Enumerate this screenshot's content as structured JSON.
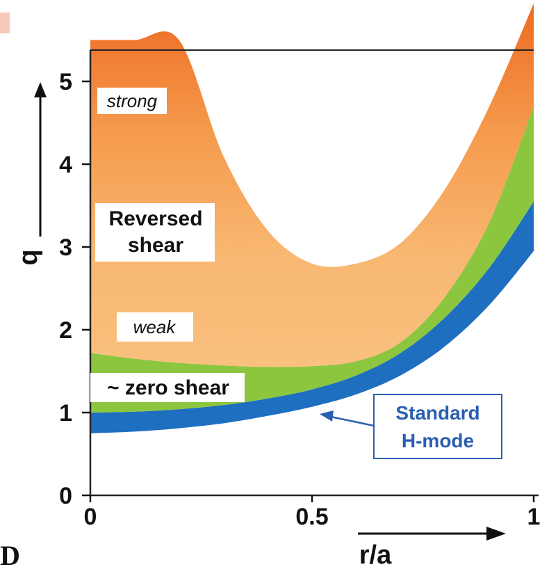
{
  "chart_data": {
    "type": "area",
    "xlabel": "r/a",
    "ylabel": "q",
    "xlim": [
      0,
      1
    ],
    "ylim": [
      0,
      5.5
    ],
    "xticks": [
      "0",
      "0.5",
      "1"
    ],
    "yticks": [
      "0",
      "1",
      "2",
      "3",
      "4",
      "5"
    ],
    "grid": false,
    "x": [
      0,
      0.1,
      0.2,
      0.3,
      0.4,
      0.5,
      0.6,
      0.7,
      0.8,
      0.9,
      1.0
    ],
    "series": [
      {
        "name": "Standard H-mode",
        "color": "#1f6fc0",
        "lower": [
          0.75,
          0.77,
          0.81,
          0.87,
          0.96,
          1.07,
          1.22,
          1.45,
          1.8,
          2.3,
          2.95
        ],
        "upper": [
          1.0,
          1.01,
          1.04,
          1.09,
          1.17,
          1.28,
          1.45,
          1.72,
          2.15,
          2.75,
          3.55
        ]
      },
      {
        "name": "~ zero shear",
        "color": "#8cc63f",
        "lower": [
          1.0,
          1.01,
          1.04,
          1.09,
          1.17,
          1.28,
          1.45,
          1.72,
          2.15,
          2.75,
          3.55
        ],
        "upper": [
          1.72,
          1.65,
          1.6,
          1.57,
          1.55,
          1.56,
          1.62,
          1.85,
          2.4,
          3.3,
          4.7
        ]
      },
      {
        "name": "Reversed shear",
        "color": "#f7a857",
        "lower": [
          1.72,
          1.65,
          1.6,
          1.57,
          1.55,
          1.56,
          1.62,
          1.85,
          2.4,
          3.3,
          4.7
        ],
        "upper": [
          5.5,
          5.5,
          5.5,
          4.1,
          3.2,
          2.8,
          2.8,
          3.05,
          3.7,
          4.7,
          6.0
        ]
      }
    ],
    "annotations": [
      "strong",
      "Reversed shear",
      "weak",
      "~ zero shear",
      "Standard H-mode"
    ]
  },
  "labels": {
    "strong": "strong",
    "reversed_line1": "Reversed",
    "reversed_line2": "shear",
    "weak": "weak",
    "zero_shear": "~ zero shear",
    "hmode_line1": "Standard",
    "hmode_line2": "H-mode"
  },
  "corner_letter": "D",
  "colors": {
    "blue": "#1f6fc0",
    "green": "#8cc63f",
    "orange_dark": "#ef6f28",
    "orange_light": "#f8be7a"
  }
}
